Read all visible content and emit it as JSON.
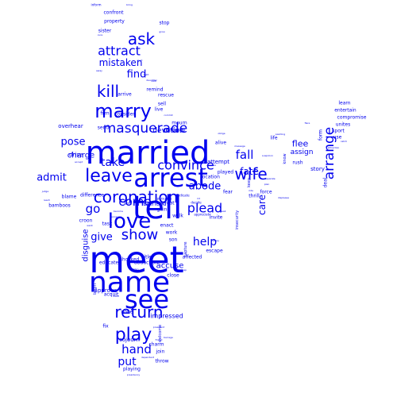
{
  "wordcloud": {
    "color": "#0000ee",
    "words": [
      {
        "text": "meet",
        "weight": 46
      },
      {
        "text": "tell",
        "weight": 40
      },
      {
        "text": "married",
        "weight": 40
      },
      {
        "text": "name",
        "weight": 36
      },
      {
        "text": "arrest",
        "weight": 32
      },
      {
        "text": "see",
        "weight": 32
      },
      {
        "text": "love",
        "weight": 26
      },
      {
        "text": "marry",
        "weight": 24
      },
      {
        "text": "leave",
        "weight": 22
      },
      {
        "text": "play",
        "weight": 22
      },
      {
        "text": "coronation",
        "weight": 20
      },
      {
        "text": "return",
        "weight": 20
      },
      {
        "text": "wife",
        "weight": 20
      },
      {
        "text": "kill",
        "weight": 20
      },
      {
        "text": "ask",
        "weight": 20
      },
      {
        "text": "show",
        "weight": 18
      },
      {
        "text": "masquerade",
        "weight": 17
      },
      {
        "text": "arrange",
        "weight": 17
      },
      {
        "text": "attract",
        "weight": 16
      },
      {
        "text": "plead",
        "weight": 16
      },
      {
        "text": "convince",
        "weight": 16
      },
      {
        "text": "hand",
        "weight": 15
      },
      {
        "text": "fall",
        "weight": 15
      },
      {
        "text": "go",
        "weight": 15
      },
      {
        "text": "come",
        "weight": 15
      },
      {
        "text": "help",
        "weight": 14
      },
      {
        "text": "put",
        "weight": 14
      },
      {
        "text": "take",
        "weight": 14
      },
      {
        "text": "admit",
        "weight": 13
      },
      {
        "text": "give",
        "weight": 13
      },
      {
        "text": "abode",
        "weight": 13
      },
      {
        "text": "pose",
        "weight": 13
      },
      {
        "text": "find",
        "weight": 13
      },
      {
        "text": "mistaken",
        "weight": 12
      },
      {
        "text": "care",
        "weight": 12
      },
      {
        "text": "fate",
        "weight": 12
      },
      {
        "text": "flee",
        "weight": 11
      },
      {
        "text": "charge",
        "weight": 10
      },
      {
        "text": "accuse",
        "weight": 10
      },
      {
        "text": "disguise",
        "weight": 10
      },
      {
        "text": "devotion",
        "weight": 9
      },
      {
        "text": "assign",
        "weight": 9
      },
      {
        "text": "impressed",
        "weight": 8
      },
      {
        "text": "overhear",
        "weight": 7
      },
      {
        "text": "drive",
        "weight": 7
      },
      {
        "text": "attempt",
        "weight": 7
      },
      {
        "text": "befriend",
        "weight": 7
      },
      {
        "text": "sojourn",
        "weight": 7
      },
      {
        "text": "approve",
        "weight": 7
      },
      {
        "text": "story",
        "weight": 7
      },
      {
        "text": "learn",
        "weight": 6
      },
      {
        "text": "entertain",
        "weight": 6
      },
      {
        "text": "compromise",
        "weight": 6
      },
      {
        "text": "unites",
        "weight": 6
      },
      {
        "text": "sport",
        "weight": 6
      },
      {
        "text": "use",
        "weight": 6
      },
      {
        "text": "fear",
        "weight": 6
      },
      {
        "text": "force",
        "weight": 6
      },
      {
        "text": "thrill",
        "weight": 6
      },
      {
        "text": "played",
        "weight": 6
      },
      {
        "text": "invite",
        "weight": 6
      },
      {
        "text": "escape",
        "weight": 6
      },
      {
        "text": "affected",
        "weight": 6
      },
      {
        "text": "close",
        "weight": 6
      },
      {
        "text": "location",
        "weight": 6
      },
      {
        "text": "alive",
        "weight": 6
      },
      {
        "text": "life",
        "weight": 6
      },
      {
        "text": "rush",
        "weight": 6
      },
      {
        "text": "form",
        "weight": 6
      },
      {
        "text": "deal",
        "weight": 6
      },
      {
        "text": "confront",
        "weight": 6
      },
      {
        "text": "property",
        "weight": 6
      },
      {
        "text": "sister",
        "weight": 6
      },
      {
        "text": "stop",
        "weight": 6
      },
      {
        "text": "consider",
        "weight": 6
      },
      {
        "text": "film",
        "weight": 6
      },
      {
        "text": "arrive",
        "weight": 6
      },
      {
        "text": "remind",
        "weight": 6
      },
      {
        "text": "rescue",
        "weight": 6
      },
      {
        "text": "sell",
        "weight": 6
      },
      {
        "text": "live",
        "weight": 6
      },
      {
        "text": "mourn",
        "weight": 6
      },
      {
        "text": "undergo",
        "weight": 6
      },
      {
        "text": "send",
        "weight": 6
      },
      {
        "text": "defeat",
        "weight": 6
      },
      {
        "text": "gain",
        "weight": 6
      },
      {
        "text": "walk",
        "weight": 6
      },
      {
        "text": "enact",
        "weight": 6
      },
      {
        "text": "work",
        "weight": 6
      },
      {
        "text": "son",
        "weight": 6
      },
      {
        "text": "title",
        "weight": 6
      },
      {
        "text": "shocked",
        "weight": 6
      },
      {
        "text": "task",
        "weight": 6
      },
      {
        "text": "croon",
        "weight": 6
      },
      {
        "text": "difference",
        "weight": 6
      },
      {
        "text": "blame",
        "weight": 6
      },
      {
        "text": "bamboos",
        "weight": 6
      },
      {
        "text": "educate",
        "weight": 6
      },
      {
        "text": "abduction",
        "weight": 6
      },
      {
        "text": "acquit",
        "weight": 6
      },
      {
        "text": "none",
        "weight": 6
      },
      {
        "text": "fix",
        "weight": 6
      },
      {
        "text": "charm",
        "weight": 6
      },
      {
        "text": "join",
        "weight": 6
      },
      {
        "text": "throw",
        "weight": 6
      },
      {
        "text": "playing",
        "weight": 6
      },
      {
        "text": "begin",
        "weight": 5
      },
      {
        "text": "welcome",
        "weight": 5
      },
      {
        "text": "capture",
        "weight": 5
      },
      {
        "text": "insecurity",
        "weight": 5
      },
      {
        "text": "know",
        "weight": 5
      },
      {
        "text": "keep",
        "weight": 5
      },
      {
        "text": "arm",
        "weight": 5
      },
      {
        "text": "persuade",
        "weight": 4
      },
      {
        "text": "dedicate",
        "weight": 4
      },
      {
        "text": "decide",
        "weight": 4
      },
      {
        "text": "appreciate",
        "weight": 4
      },
      {
        "text": "inform",
        "weight": 4
      },
      {
        "text": "bring",
        "weight": 3
      },
      {
        "text": "grow",
        "weight": 3
      },
      {
        "text": "cure",
        "weight": 3
      },
      {
        "text": "lie",
        "weight": 3
      },
      {
        "text": "alert",
        "weight": 3
      },
      {
        "text": "away",
        "weight": 3
      },
      {
        "text": "fight",
        "weight": 3
      },
      {
        "text": "daughter",
        "weight": 3
      },
      {
        "text": "look",
        "weight": 3
      },
      {
        "text": "commit",
        "weight": 3
      },
      {
        "text": "oblige",
        "weight": 3
      },
      {
        "text": "message",
        "weight": 3
      },
      {
        "text": "painting",
        "weight": 3
      },
      {
        "text": "attraction",
        "weight": 3
      },
      {
        "text": "catch",
        "weight": 3
      },
      {
        "text": "plan",
        "weight": 3
      },
      {
        "text": "separate",
        "weight": 3
      },
      {
        "text": "ride",
        "weight": 3
      },
      {
        "text": "suspicion",
        "weight": 3
      },
      {
        "text": "displease",
        "weight": 3
      },
      {
        "text": "speak",
        "weight": 3
      },
      {
        "text": "recognize",
        "weight": 3
      },
      {
        "text": "reach",
        "weight": 3
      },
      {
        "text": "judge",
        "weight": 3
      },
      {
        "text": "want",
        "weight": 3
      },
      {
        "text": "head",
        "weight": 3
      },
      {
        "text": "barrage",
        "weight": 3
      },
      {
        "text": "friend",
        "weight": 3
      },
      {
        "text": "dependent",
        "weight": 3
      },
      {
        "text": "presidency",
        "weight": 3
      },
      {
        "text": "president",
        "weight": 3
      },
      {
        "text": "become",
        "weight": 3
      },
      {
        "text": "kidnap",
        "weight": 3
      },
      {
        "text": "sadden",
        "weight": 3
      },
      {
        "text": "accept",
        "weight": 3
      },
      {
        "text": "address",
        "weight": 3
      },
      {
        "text": "enjoy",
        "weight": 3
      },
      {
        "text": "flare",
        "weight": 3
      },
      {
        "text": "rid",
        "weight": 3
      }
    ]
  }
}
